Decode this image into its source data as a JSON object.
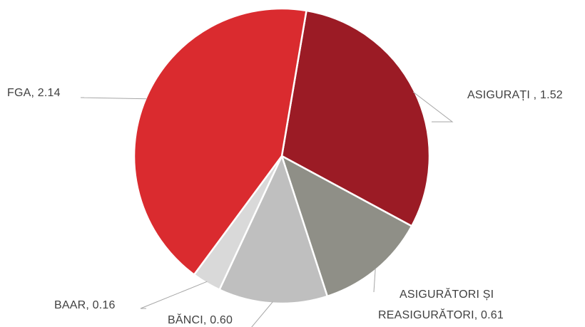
{
  "chart_data": {
    "type": "pie",
    "title": "",
    "series": [
      {
        "slices": [
          {
            "label": "ASIGURAȚI",
            "value": 1.52,
            "value_text": "1.52",
            "color": "#9b1b25",
            "separator": " ,  "
          },
          {
            "label": "ASIGURĂTORI ȘI REASIGURĂTORI",
            "value": 0.61,
            "value_text": "0.61",
            "color": "#8f8f87",
            "separator": ",  "
          },
          {
            "label": "BĂNCI",
            "value": 0.6,
            "value_text": "0.60",
            "color": "#bfbfbf",
            "separator": ",  "
          },
          {
            "label": "BAAR",
            "value": 0.16,
            "value_text": "0.16",
            "color": "#d9d9d9",
            "separator": ",  "
          },
          {
            "label": "FGA",
            "value": 2.14,
            "value_text": "2.14",
            "color": "#da2b2f",
            "separator": ",  "
          }
        ]
      }
    ],
    "legend": "none",
    "data_labels": "category-and-value, outside with leader lines"
  }
}
